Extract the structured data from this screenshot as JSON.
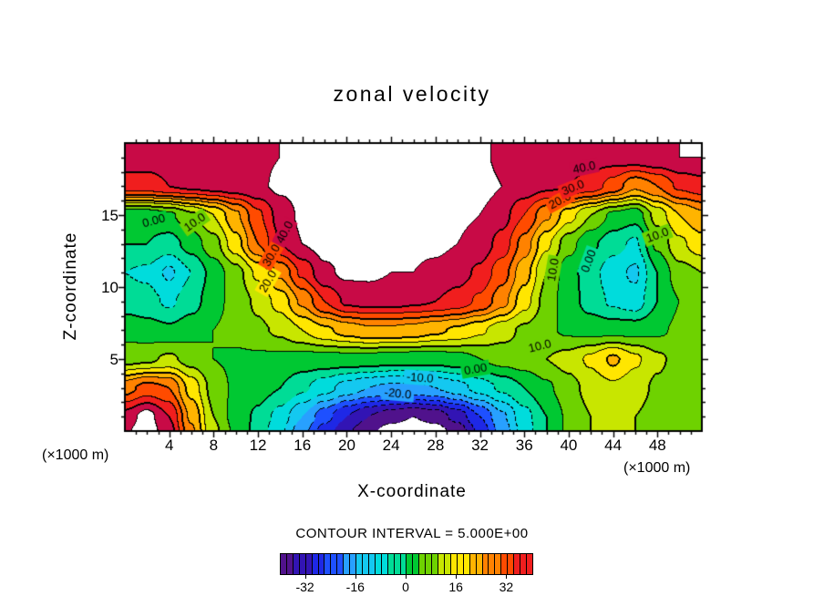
{
  "title": "zonal velocity",
  "caption": "CONTOUR INTERVAL = 5.000E+00",
  "axes": {
    "x": {
      "title": "X-coordinate",
      "unit_left": "(×1000 m)",
      "unit_right": "(×1000 m)",
      "min": 0,
      "max": 52,
      "major_ticks": [
        4,
        8,
        12,
        16,
        20,
        24,
        28,
        32,
        36,
        40,
        44,
        48
      ],
      "minor_step": 1
    },
    "z": {
      "title": "Z-coordinate",
      "min": 0,
      "max": 20,
      "major_ticks": [
        5,
        10,
        15
      ],
      "minor_step": 1
    }
  },
  "colorbar": {
    "min": -40,
    "max": 40,
    "tick_values": [
      -32,
      -16,
      0,
      16,
      32
    ],
    "cell_units": 2
  },
  "chart_data": {
    "type": "heatmap",
    "title": "zonal velocity",
    "xlabel": "X-coordinate (×1000 m)",
    "ylabel": "Z-coordinate (×1000 m)",
    "contour_interval": 5.0,
    "contour_interval_label": "5.000E+00",
    "level_min": -40,
    "level_max": 45,
    "out_of_range_color": "#ffffff",
    "negative_style": "dashed",
    "positive_style": "solid",
    "x": [
      0,
      2,
      4,
      6,
      8,
      10,
      12,
      14,
      16,
      18,
      20,
      22,
      24,
      26,
      28,
      30,
      32,
      34,
      36,
      38,
      40,
      42,
      44,
      46,
      48,
      50,
      52
    ],
    "z_rows": [
      20,
      19,
      17,
      15,
      13,
      11,
      9,
      7,
      5,
      3,
      1,
      0
    ],
    "values": [
      [
        42,
        42,
        42,
        43,
        43,
        43,
        44,
        45,
        46,
        47,
        47,
        47,
        47,
        47,
        47,
        47,
        46,
        44,
        43,
        42,
        42,
        42,
        42,
        43,
        44,
        45,
        45
      ],
      [
        42,
        42,
        42,
        43,
        43,
        43,
        44,
        45,
        46,
        47,
        47,
        47,
        47,
        47,
        47,
        47,
        46,
        44,
        43,
        42,
        42,
        42,
        42,
        43,
        44,
        45,
        45
      ],
      [
        38,
        38,
        40,
        41,
        42,
        43,
        44,
        46,
        47,
        48,
        48,
        48,
        48,
        48,
        48,
        48,
        47,
        45,
        43,
        41,
        40,
        38,
        33,
        26,
        30,
        36,
        38
      ],
      [
        2,
        2,
        4,
        9,
        15,
        24,
        34,
        42,
        46,
        48,
        48,
        48,
        48,
        47,
        47,
        46,
        45,
        42,
        35,
        26,
        17,
        10,
        4,
        2,
        12,
        20,
        24
      ],
      [
        0,
        0,
        -2,
        2,
        8,
        18,
        30,
        40,
        45,
        47,
        47,
        47,
        46,
        46,
        46,
        45,
        43,
        38,
        28,
        16,
        7,
        1,
        -3,
        -6,
        6,
        14,
        18
      ],
      [
        -5,
        -6,
        -11,
        -5,
        2,
        8,
        16,
        26,
        36,
        44,
        46,
        46,
        45,
        45,
        44,
        42,
        39,
        32,
        22,
        10,
        2,
        -3,
        -8,
        -11,
        0,
        8,
        10
      ],
      [
        -2,
        -3,
        -6,
        -2,
        3,
        7,
        11,
        17,
        26,
        35,
        41,
        42,
        42,
        41,
        40,
        38,
        34,
        27,
        17,
        8,
        2,
        -2,
        -6,
        -8,
        0,
        5,
        7
      ],
      [
        3,
        2,
        1,
        3,
        5,
        7,
        9,
        11,
        15,
        19,
        22,
        24,
        24,
        23,
        21,
        19,
        16,
        12,
        9,
        6,
        4,
        3,
        3,
        3,
        4,
        6,
        7
      ],
      [
        8,
        9,
        11,
        8,
        5,
        4,
        4,
        4,
        3,
        3,
        3,
        3,
        2,
        2,
        2,
        3,
        5,
        7,
        8,
        10,
        12,
        16,
        21,
        16,
        11,
        8,
        7
      ],
      [
        28,
        32,
        30,
        18,
        8,
        4,
        2,
        0,
        -4,
        -8,
        -12,
        -15,
        -16,
        -16,
        -15,
        -12,
        -8,
        -4,
        0,
        4,
        8,
        12,
        14,
        12,
        9,
        7,
        6
      ],
      [
        42,
        47,
        40,
        24,
        10,
        3,
        -1,
        -7,
        -15,
        -23,
        -30,
        -35,
        -38,
        -40,
        -38,
        -33,
        -25,
        -16,
        -7,
        0,
        6,
        10,
        12,
        10,
        8,
        7,
        6
      ],
      [
        44,
        48,
        42,
        26,
        11,
        4,
        -2,
        -9,
        -18,
        -27,
        -34,
        -39,
        -42,
        -43,
        -42,
        -38,
        -29,
        -18,
        -8,
        0,
        6,
        10,
        12,
        10,
        8,
        7,
        6
      ]
    ],
    "palette_level_mins": [
      -40,
      -35,
      -30,
      -25,
      -20,
      -15,
      -10,
      -5,
      0,
      5,
      10,
      15,
      20,
      25,
      30,
      35,
      40
    ],
    "palette_colors": [
      "#50128c",
      "#3214b4",
      "#1e28e6",
      "#1e50ff",
      "#28a0ff",
      "#14c8f0",
      "#00dcdc",
      "#00dc96",
      "#00c832",
      "#6ed200",
      "#c8e600",
      "#ffe600",
      "#ffb400",
      "#ff8200",
      "#ff4b00",
      "#f01e1e",
      "#c80a46"
    ],
    "contour_labels": [
      {
        "text": "0.00",
        "x": 2.6,
        "z": 14.6,
        "rot": -15
      },
      {
        "text": "10.0",
        "x": 6.3,
        "z": 14.5,
        "rot": -35
      },
      {
        "text": "20.0",
        "x": 12.9,
        "z": 10.4,
        "rot": -60
      },
      {
        "text": "30.0",
        "x": 13.2,
        "z": 12.2,
        "rot": -60
      },
      {
        "text": "40.0",
        "x": 14.4,
        "z": 13.8,
        "rot": -62
      },
      {
        "text": "20.0",
        "x": 39.2,
        "z": 16.0,
        "rot": -28
      },
      {
        "text": "30.0",
        "x": 40.4,
        "z": 16.9,
        "rot": -22
      },
      {
        "text": "40.0",
        "x": 41.4,
        "z": 18.3,
        "rot": -12
      },
      {
        "text": "10.0",
        "x": 38.6,
        "z": 11.2,
        "rot": -80
      },
      {
        "text": "0.00",
        "x": 41.8,
        "z": 11.8,
        "rot": -70
      },
      {
        "text": "10.0",
        "x": 48.0,
        "z": 13.6,
        "rot": -20
      },
      {
        "text": "10.0",
        "x": 37.4,
        "z": 5.9,
        "rot": -14
      },
      {
        "text": "0.00",
        "x": 31.6,
        "z": 4.3,
        "rot": -10
      },
      {
        "text": "-10.0",
        "x": 26.6,
        "z": 3.7,
        "rot": 4
      },
      {
        "text": "-20.0",
        "x": 24.6,
        "z": 2.6,
        "rot": 5
      }
    ]
  }
}
